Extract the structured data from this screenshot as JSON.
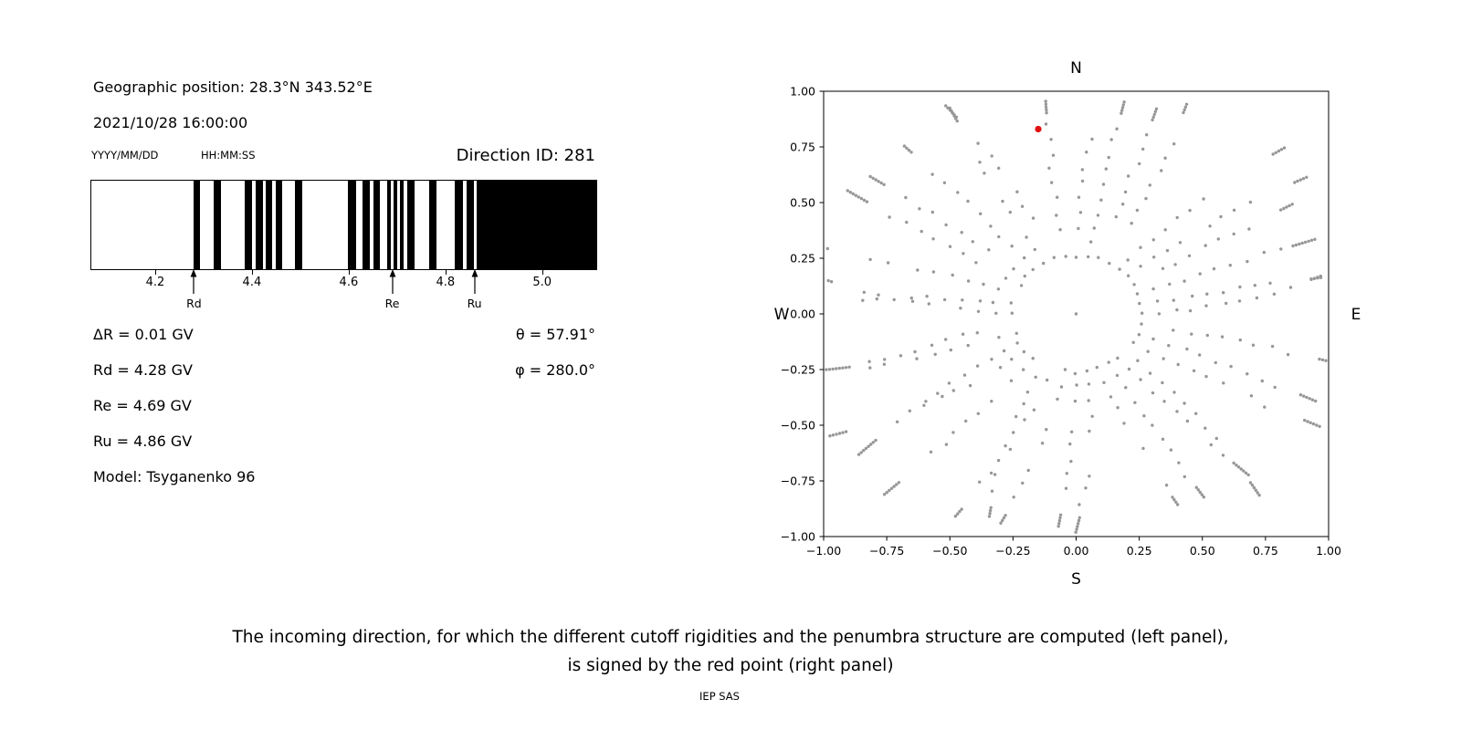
{
  "header": {
    "geo_position": "Geographic position: 28.3°N 343.52°E",
    "datetime": "2021/10/28 16:00:00",
    "date_format": "YYYY/MM/DD",
    "time_format": "HH:MM:SS",
    "direction_id": "Direction ID: 281"
  },
  "params": {
    "delta_r": "ΔR = 0.01 GV",
    "rd": "Rd = 4.28 GV",
    "re": "Re = 4.69 GV",
    "ru": "Ru = 4.86 GV",
    "model": "Model: Tsyganenko 96",
    "theta": "θ = 57.91°",
    "phi": "φ = 280.0°"
  },
  "caption": {
    "line1": "The incoming direction, for which the different cutoff rigidities and the penumbra structure are computed (left panel),",
    "line2": "is signed by the red point (right panel)",
    "credit": "IEP SAS"
  },
  "chart_data": [
    {
      "type": "barcode",
      "description": "Penumbra structure: black bands are forbidden rigidity intervals (GV)",
      "x_range": [
        4.066,
        5.11
      ],
      "x_ticks": [
        4.2,
        4.4,
        4.6,
        4.8,
        5.0
      ],
      "black_bands": [
        [
          4.277,
          4.291
        ],
        [
          4.319,
          4.334
        ],
        [
          4.383,
          4.398
        ],
        [
          4.406,
          4.421
        ],
        [
          4.426,
          4.44
        ],
        [
          4.447,
          4.46
        ],
        [
          4.487,
          4.502
        ],
        [
          4.596,
          4.613
        ],
        [
          4.626,
          4.642
        ],
        [
          4.649,
          4.662
        ],
        [
          4.677,
          4.685
        ],
        [
          4.691,
          4.698
        ],
        [
          4.704,
          4.711
        ],
        [
          4.719,
          4.734
        ],
        [
          4.764,
          4.779
        ],
        [
          4.818,
          4.834
        ],
        [
          4.842,
          4.857
        ],
        [
          4.862,
          5.11
        ]
      ],
      "markers": [
        {
          "label": "Rd",
          "value": 4.28
        },
        {
          "label": "Re",
          "value": 4.69
        },
        {
          "label": "Ru",
          "value": 4.86
        }
      ]
    },
    {
      "type": "scatter",
      "description": "Sky map of incoming directions; gray dots form radial spokes, red dot marks computed direction",
      "xlim": [
        -1,
        1
      ],
      "ylim": [
        -1,
        1
      ],
      "x_ticks": [
        -1.0,
        -0.75,
        -0.5,
        -0.25,
        0.0,
        0.25,
        0.5,
        0.75,
        1.0
      ],
      "y_ticks": [
        -1.0,
        -0.75,
        -0.5,
        -0.25,
        0.0,
        0.25,
        0.5,
        0.75,
        1.0
      ],
      "direction_labels": {
        "top": "N",
        "bottom": "S",
        "left": "W",
        "right": "E"
      },
      "dot_color": "#979797",
      "red_color": "#e01010",
      "red_point": {
        "x": -0.15,
        "y": 0.83
      },
      "pattern": {
        "style": "radial-spokes",
        "num_rays": 36,
        "angle_step_deg": 10,
        "inner_radius": 0.26,
        "radial_step": 0.066,
        "main_dots_per_ray": 10,
        "edge_cluster_radius_min": 0.9,
        "edge_cluster_radius_max": 1.06,
        "edge_cluster_dots_min": 4,
        "edge_cluster_dots_max": 8,
        "edge_cluster_spacing": 0.013,
        "center_dot": true
      }
    }
  ]
}
